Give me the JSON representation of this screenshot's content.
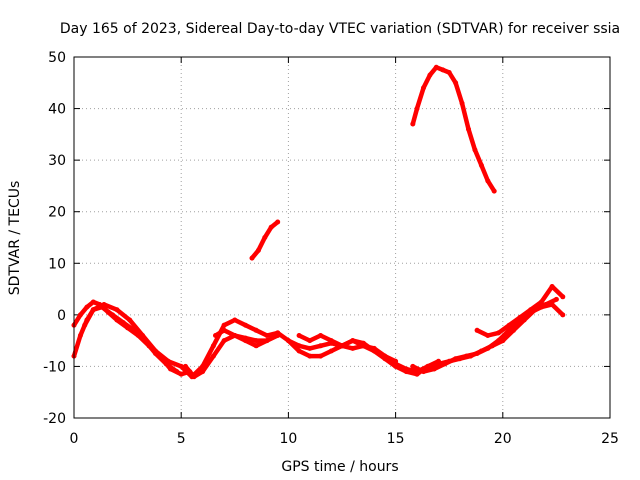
{
  "chart_data": {
    "type": "line",
    "title": "Day 165 of 2023, Sidereal Day-to-day VTEC variation (SDTVAR) for receiver ssia",
    "xlabel": "GPS time / hours",
    "ylabel": "SDTVAR / TECUs",
    "xlim": [
      0,
      25
    ],
    "ylim": [
      -20,
      50
    ],
    "xticks": [
      0,
      5,
      10,
      15,
      20,
      25
    ],
    "yticks": [
      -20,
      -10,
      0,
      10,
      20,
      30,
      40,
      50
    ],
    "grid": true,
    "series_color": "#ff0000",
    "series": [
      {
        "name": "track-1",
        "x": [
          0.0,
          0.3,
          0.6,
          0.9,
          1.2,
          1.6,
          2.0,
          2.5,
          3.0,
          3.5,
          4.0,
          4.5,
          5.0,
          5.4
        ],
        "y": [
          -2,
          0,
          1.5,
          2.5,
          2.0,
          0.5,
          -1.0,
          -2.5,
          -4.0,
          -6.0,
          -8.0,
          -10.5,
          -11.5,
          -11.0
        ]
      },
      {
        "name": "track-2",
        "x": [
          0.0,
          0.3,
          0.6,
          0.9,
          1.3,
          1.8,
          2.3,
          2.8,
          3.3,
          3.8,
          4.3,
          4.8
        ],
        "y": [
          -8,
          -4,
          -1,
          1,
          1.5,
          0,
          -1.5,
          -3,
          -5,
          -7.5,
          -9.5,
          -11
        ]
      },
      {
        "name": "track-3",
        "x": [
          0.5,
          0.9,
          1.4,
          2.0,
          2.6,
          3.2,
          3.8,
          4.4,
          5.0,
          5.5,
          6.0,
          6.5,
          7.0,
          7.5,
          8.0,
          8.5,
          9.0,
          9.5
        ],
        "y": [
          -2,
          1,
          2,
          1,
          -1,
          -4,
          -7,
          -9,
          -10,
          -12,
          -10,
          -6,
          -2,
          -1,
          -2,
          -3,
          -4,
          -3.5
        ]
      },
      {
        "name": "track-4",
        "x": [
          5.2,
          5.6,
          6.0,
          6.5,
          7.0,
          7.5,
          8.0,
          8.5,
          9.0,
          9.5
        ],
        "y": [
          -10,
          -12,
          -11,
          -8,
          -5,
          -4,
          -4.5,
          -5,
          -5,
          -4
        ]
      },
      {
        "name": "track-5",
        "x": [
          6.6,
          7.0,
          7.5,
          8.0,
          8.5,
          9.0
        ],
        "y": [
          -4,
          -3,
          -4,
          -5,
          -6,
          -5
        ]
      },
      {
        "name": "track-6",
        "x": [
          9.5,
          10.0,
          10.5,
          11.0,
          11.5,
          12.0,
          12.5,
          13.0,
          13.5,
          14.0,
          14.5,
          15.0,
          15.5,
          16.0,
          16.5,
          17.0
        ],
        "y": [
          -3.5,
          -5,
          -6,
          -6.5,
          -6,
          -5.5,
          -6,
          -6.5,
          -6,
          -6.5,
          -8,
          -9.5,
          -10.5,
          -11,
          -10,
          -9
        ]
      },
      {
        "name": "track-7",
        "x": [
          10.0,
          10.5,
          11.0,
          11.5,
          12.0,
          12.5,
          13.0,
          13.5,
          14.0,
          14.5,
          15.0,
          15.5,
          16.0,
          16.5,
          17.0,
          17.5,
          18.0,
          18.5,
          19.0,
          19.5,
          20.0
        ],
        "y": [
          -5,
          -7,
          -8,
          -8,
          -7,
          -6,
          -5,
          -6,
          -7,
          -8.5,
          -10,
          -11,
          -11.5,
          -10,
          -9.5,
          -9,
          -8.5,
          -8,
          -7,
          -6,
          -5
        ]
      },
      {
        "name": "track-8",
        "x": [
          10.5,
          11.0,
          11.5,
          12.0,
          12.5,
          13.0,
          13.5,
          14.0,
          14.5,
          15.0
        ],
        "y": [
          -4,
          -5,
          -4,
          -5,
          -6,
          -5,
          -5.5,
          -7,
          -8,
          -9
        ]
      },
      {
        "name": "track-9",
        "x": [
          15.8,
          16.3,
          16.8,
          17.3,
          17.8,
          18.3,
          18.8,
          19.3,
          19.8,
          20.3,
          20.8,
          21.3,
          21.8,
          22.3,
          22.8
        ],
        "y": [
          -10,
          -11,
          -10.5,
          -9.5,
          -8.5,
          -8,
          -7.5,
          -6.5,
          -5,
          -3,
          -1,
          0.5,
          1.5,
          2,
          0
        ]
      },
      {
        "name": "track-10",
        "x": [
          18.8,
          19.3,
          19.8,
          20.3,
          20.8,
          21.3,
          21.8,
          22.3,
          22.8
        ],
        "y": [
          -3,
          -4,
          -3.5,
          -2,
          -0.5,
          1,
          2.5,
          5.5,
          3.5
        ]
      },
      {
        "name": "track-11",
        "x": [
          19.5,
          20.0,
          20.5,
          21.0,
          21.5,
          22.0,
          22.5
        ],
        "y": [
          -6,
          -5,
          -3,
          -1,
          1,
          2,
          3
        ]
      },
      {
        "name": "track-12",
        "x": [
          8.3,
          8.6,
          8.9,
          9.2,
          9.5
        ],
        "y": [
          11,
          12.5,
          15,
          17,
          18
        ]
      },
      {
        "name": "track-13",
        "x": [
          15.8,
          16.0,
          16.3,
          16.6,
          16.9,
          17.2,
          17.5,
          17.8,
          18.1,
          18.4,
          18.7,
          19.0,
          19.3,
          19.6
        ],
        "y": [
          37,
          40,
          44,
          46.5,
          48,
          47.5,
          47,
          45,
          41,
          36,
          32,
          29,
          26,
          24
        ]
      }
    ]
  }
}
